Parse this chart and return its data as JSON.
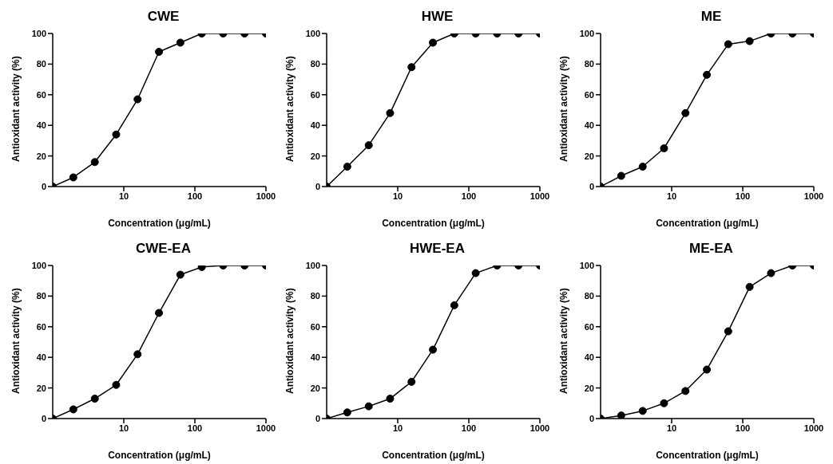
{
  "chart_data": [
    {
      "type": "line",
      "title": "CWE",
      "xlabel": "Concentration (μg/mL)",
      "ylabel": "Antioxidant activity (%)",
      "log": "x",
      "marker": "circle",
      "line_style": "solid",
      "xlim": [
        1,
        1000
      ],
      "xticks": [
        10,
        100,
        1000
      ],
      "ylim": [
        0,
        100
      ],
      "yticks": [
        0,
        20,
        40,
        60,
        80,
        100
      ],
      "x": [
        1,
        1.95,
        3.91,
        7.81,
        15.63,
        31.25,
        62.5,
        125,
        250,
        500,
        1000
      ],
      "series": [
        {
          "color": "#000000",
          "values": [
            0,
            6,
            16,
            34,
            57,
            88,
            94,
            100,
            100,
            100,
            100
          ]
        }
      ]
    },
    {
      "type": "line",
      "title": "HWE",
      "xlabel": "Concentration (μg/mL)",
      "ylabel": "Antioxidant activity (%)",
      "log": "x",
      "marker": "circle",
      "line_style": "solid",
      "xlim": [
        1,
        1000
      ],
      "xticks": [
        10,
        100,
        1000
      ],
      "ylim": [
        0,
        100
      ],
      "yticks": [
        0,
        20,
        40,
        60,
        80,
        100
      ],
      "x": [
        1,
        1.95,
        3.91,
        7.81,
        15.63,
        31.25,
        62.5,
        125,
        250,
        500,
        1000
      ],
      "series": [
        {
          "color": "#000000",
          "values": [
            0,
            13,
            27,
            48,
            78,
            94,
            100,
            100,
            100,
            100,
            100
          ]
        }
      ]
    },
    {
      "type": "line",
      "title": "ME",
      "xlabel": "Concentration (μg/mL)",
      "ylabel": "Antioxidant activity (%)",
      "log": "x",
      "marker": "circle",
      "line_style": "solid",
      "xlim": [
        1,
        1000
      ],
      "xticks": [
        10,
        100,
        1000
      ],
      "ylim": [
        0,
        100
      ],
      "yticks": [
        0,
        20,
        40,
        60,
        80,
        100
      ],
      "x": [
        1,
        1.95,
        3.91,
        7.81,
        15.63,
        31.25,
        62.5,
        125,
        250,
        500,
        1000
      ],
      "series": [
        {
          "color": "#000000",
          "values": [
            0,
            7,
            13,
            25,
            48,
            73,
            93,
            95,
            100,
            100,
            100
          ]
        }
      ]
    },
    {
      "type": "line",
      "title": "CWE-EA",
      "xlabel": "Concentration (μg/mL)",
      "ylabel": "Antioxidant activity (%)",
      "log": "x",
      "marker": "circle",
      "line_style": "solid",
      "xlim": [
        1,
        1000
      ],
      "xticks": [
        10,
        100,
        1000
      ],
      "ylim": [
        0,
        100
      ],
      "yticks": [
        0,
        20,
        40,
        60,
        80,
        100
      ],
      "x": [
        1,
        1.95,
        3.91,
        7.81,
        15.63,
        31.25,
        62.5,
        125,
        250,
        500,
        1000
      ],
      "series": [
        {
          "color": "#000000",
          "values": [
            0,
            6,
            13,
            22,
            42,
            69,
            94,
            99,
            100,
            100,
            100
          ]
        }
      ]
    },
    {
      "type": "line",
      "title": "HWE-EA",
      "xlabel": "Concentration (μg/mL)",
      "ylabel": "Antioxidant activity (%)",
      "log": "x",
      "marker": "circle",
      "line_style": "solid",
      "xlim": [
        1,
        1000
      ],
      "xticks": [
        10,
        100,
        1000
      ],
      "ylim": [
        0,
        100
      ],
      "yticks": [
        0,
        20,
        40,
        60,
        80,
        100
      ],
      "x": [
        1,
        1.95,
        3.91,
        7.81,
        15.63,
        31.25,
        62.5,
        125,
        250,
        500,
        1000
      ],
      "series": [
        {
          "color": "#000000",
          "values": [
            0,
            4,
            8,
            13,
            24,
            45,
            74,
            95,
            100,
            100,
            100
          ]
        }
      ]
    },
    {
      "type": "line",
      "title": "ME-EA",
      "xlabel": "Concentration (μg/mL)",
      "ylabel": "Antioxidant activity (%)",
      "log": "x",
      "marker": "circle",
      "line_style": "solid",
      "xlim": [
        1,
        1000
      ],
      "xticks": [
        10,
        100,
        1000
      ],
      "ylim": [
        0,
        100
      ],
      "yticks": [
        0,
        20,
        40,
        60,
        80,
        100
      ],
      "x": [
        1,
        1.95,
        3.91,
        7.81,
        15.63,
        31.25,
        62.5,
        125,
        250,
        500,
        1000
      ],
      "series": [
        {
          "color": "#000000",
          "values": [
            0,
            2,
            5,
            10,
            18,
            32,
            57,
            86,
            95,
            100,
            100
          ]
        }
      ]
    }
  ]
}
